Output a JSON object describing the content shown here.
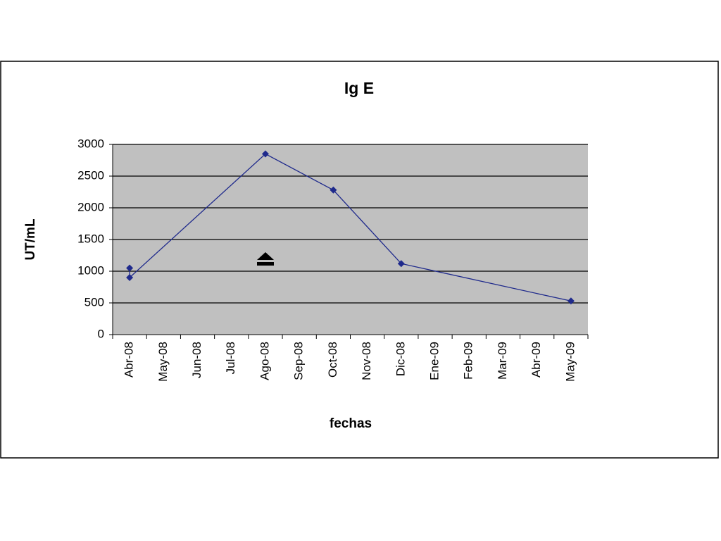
{
  "chart_data": {
    "type": "line",
    "title": "Ig E",
    "x_label": "fechas",
    "y_label": "UT/mL",
    "categories": [
      "Abr-08",
      "May-08",
      "Jun-08",
      "Jul-08",
      "Ago-08",
      "Sep-08",
      "Oct-08",
      "Nov-08",
      "Dic-08",
      "Ene-09",
      "Feb-09",
      "Mar-09",
      "Abr-09",
      "May-09"
    ],
    "x": [
      "Abr-08",
      "Abr-08",
      "Ago-08",
      "Oct-08",
      "Dic-08",
      "May-09"
    ],
    "values": [
      1050,
      900,
      2850,
      2280,
      1120,
      530
    ],
    "color": "#1f2a8c",
    "ylim": [
      0,
      3000
    ],
    "yticks": [
      0,
      500,
      1000,
      1500,
      2000,
      2500,
      3000
    ],
    "grid": true
  }
}
